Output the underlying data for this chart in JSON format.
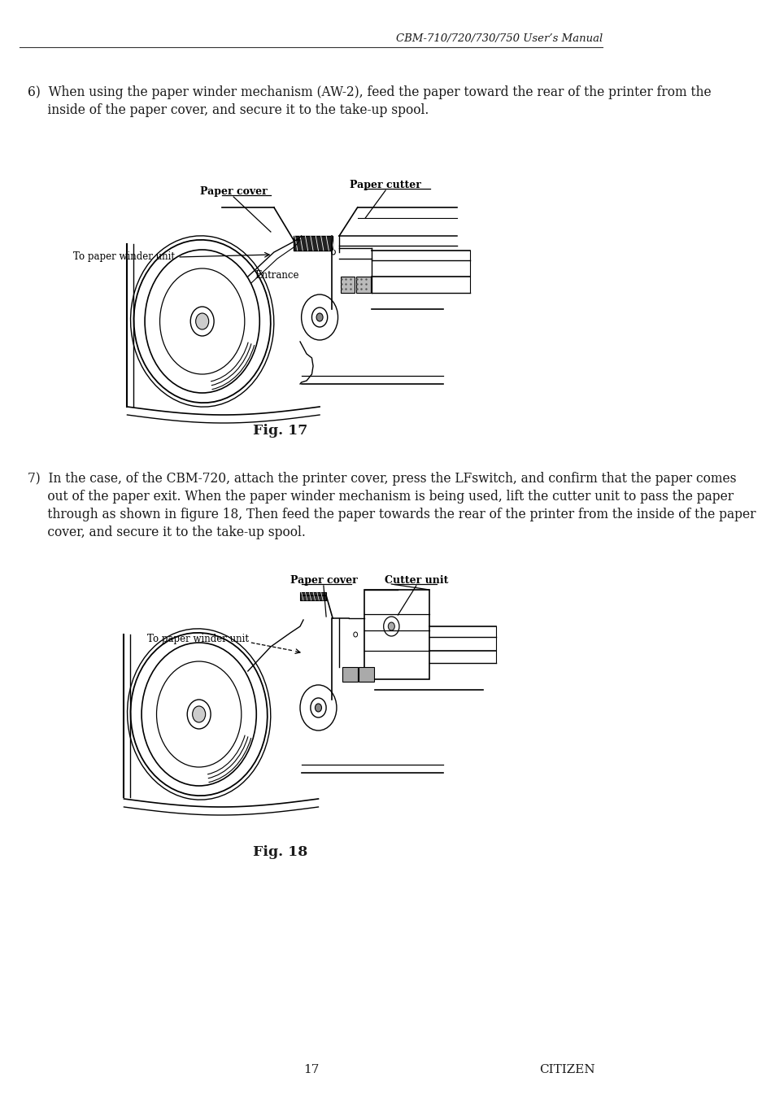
{
  "header_text": "CBM-710/720/730/750 User’s Manual",
  "page_number": "17",
  "footer_brand": "CITIZEN",
  "section6_line1": "6)  When using the paper winder mechanism (AW-2), feed the paper toward the rear of the printer from the",
  "section6_line2": "     inside of the paper cover, and secure it to the take-up spool.",
  "fig17_caption": "Fig. 17",
  "section7_line1": "7)  In the case, of the CBM-720, attach the printer cover, press the LFswitch, and confirm that the paper comes",
  "section7_line2": "     out of the paper exit. When the paper winder mechanism is being used, lift the cutter unit to pass the paper",
  "section7_line3": "     through as shown in figure 18, Then feed the paper towards the rear of the printer from the inside of the paper",
  "section7_line4": "     cover, and secure it to the take-up spool.",
  "fig18_caption": "Fig. 18",
  "bg_color": "#ffffff",
  "text_color": "#1a1a1a",
  "font_size_body": 11.2,
  "font_size_caption": 11.5,
  "font_size_header": 9.5,
  "font_size_label": 8.5,
  "font_size_page": 11
}
